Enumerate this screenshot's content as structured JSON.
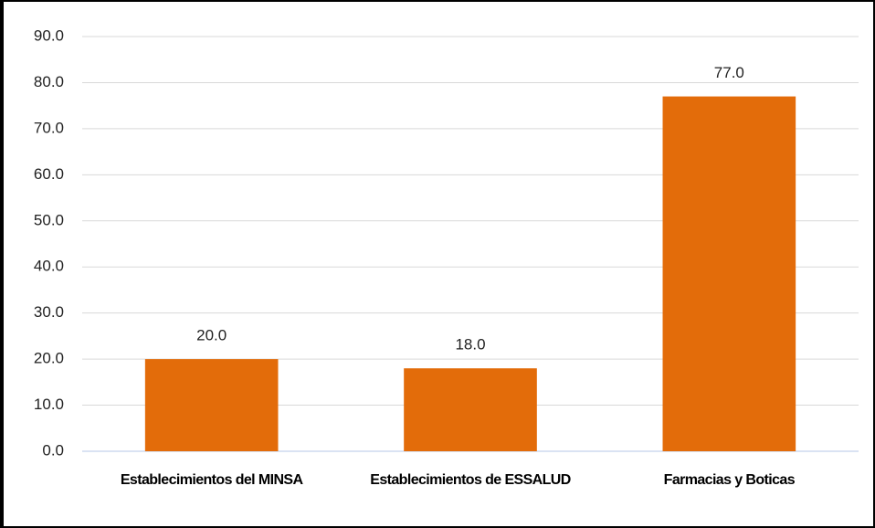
{
  "chart_data": {
    "type": "bar",
    "categories": [
      "Establecimientos del MINSA",
      "Establecimientos de ESSALUD",
      "Farmacias y Boticas"
    ],
    "values": [
      20,
      18,
      77
    ],
    "value_labels": [
      "20.0",
      "18.0",
      "77.0"
    ],
    "color": "#e36c0a",
    "ylim": [
      0,
      90
    ],
    "yticks": [
      {
        "value": 0,
        "label": "0.0"
      },
      {
        "value": 10,
        "label": "10.0"
      },
      {
        "value": 20,
        "label": "20.0"
      },
      {
        "value": 30,
        "label": "30.0"
      },
      {
        "value": 40,
        "label": "40.0"
      },
      {
        "value": 50,
        "label": "50.0"
      },
      {
        "value": 60,
        "label": "60.0"
      },
      {
        "value": 70,
        "label": "70.0"
      },
      {
        "value": 80,
        "label": "80.0"
      },
      {
        "value": 90,
        "label": "90.0"
      }
    ],
    "grid": true
  }
}
